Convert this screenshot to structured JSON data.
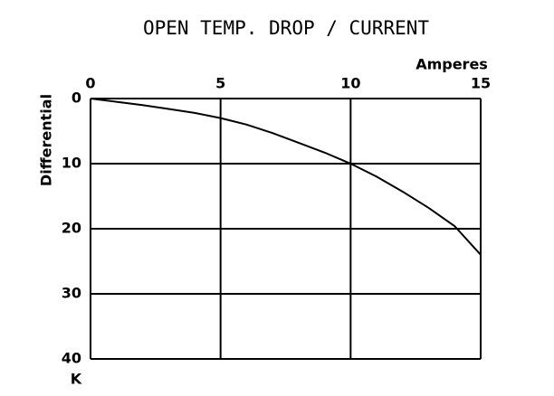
{
  "chart_data": {
    "type": "line",
    "title": "OPEN TEMP. DROP / CURRENT",
    "x_label": "Amperes",
    "y_label": "Differential",
    "y_unit": "K",
    "x": [
      0,
      1,
      2,
      3,
      4,
      5,
      6,
      7,
      8,
      9,
      10,
      11,
      12,
      13,
      14,
      15
    ],
    "series": [
      {
        "color": "#000000",
        "values": [
          0,
          0.5,
          1,
          1.6,
          2.2,
          3,
          4,
          5.3,
          6.8,
          8.3,
          10,
          12,
          14.3,
          16.8,
          19.6,
          24
        ]
      }
    ],
    "xlim": [
      0,
      15
    ],
    "xticks": [
      0,
      5,
      10,
      15
    ],
    "ylim": [
      0,
      40
    ],
    "yticks": [
      0,
      10,
      20,
      30,
      40
    ],
    "y_inverted": true,
    "x_axis_position": "top",
    "grid": true
  }
}
